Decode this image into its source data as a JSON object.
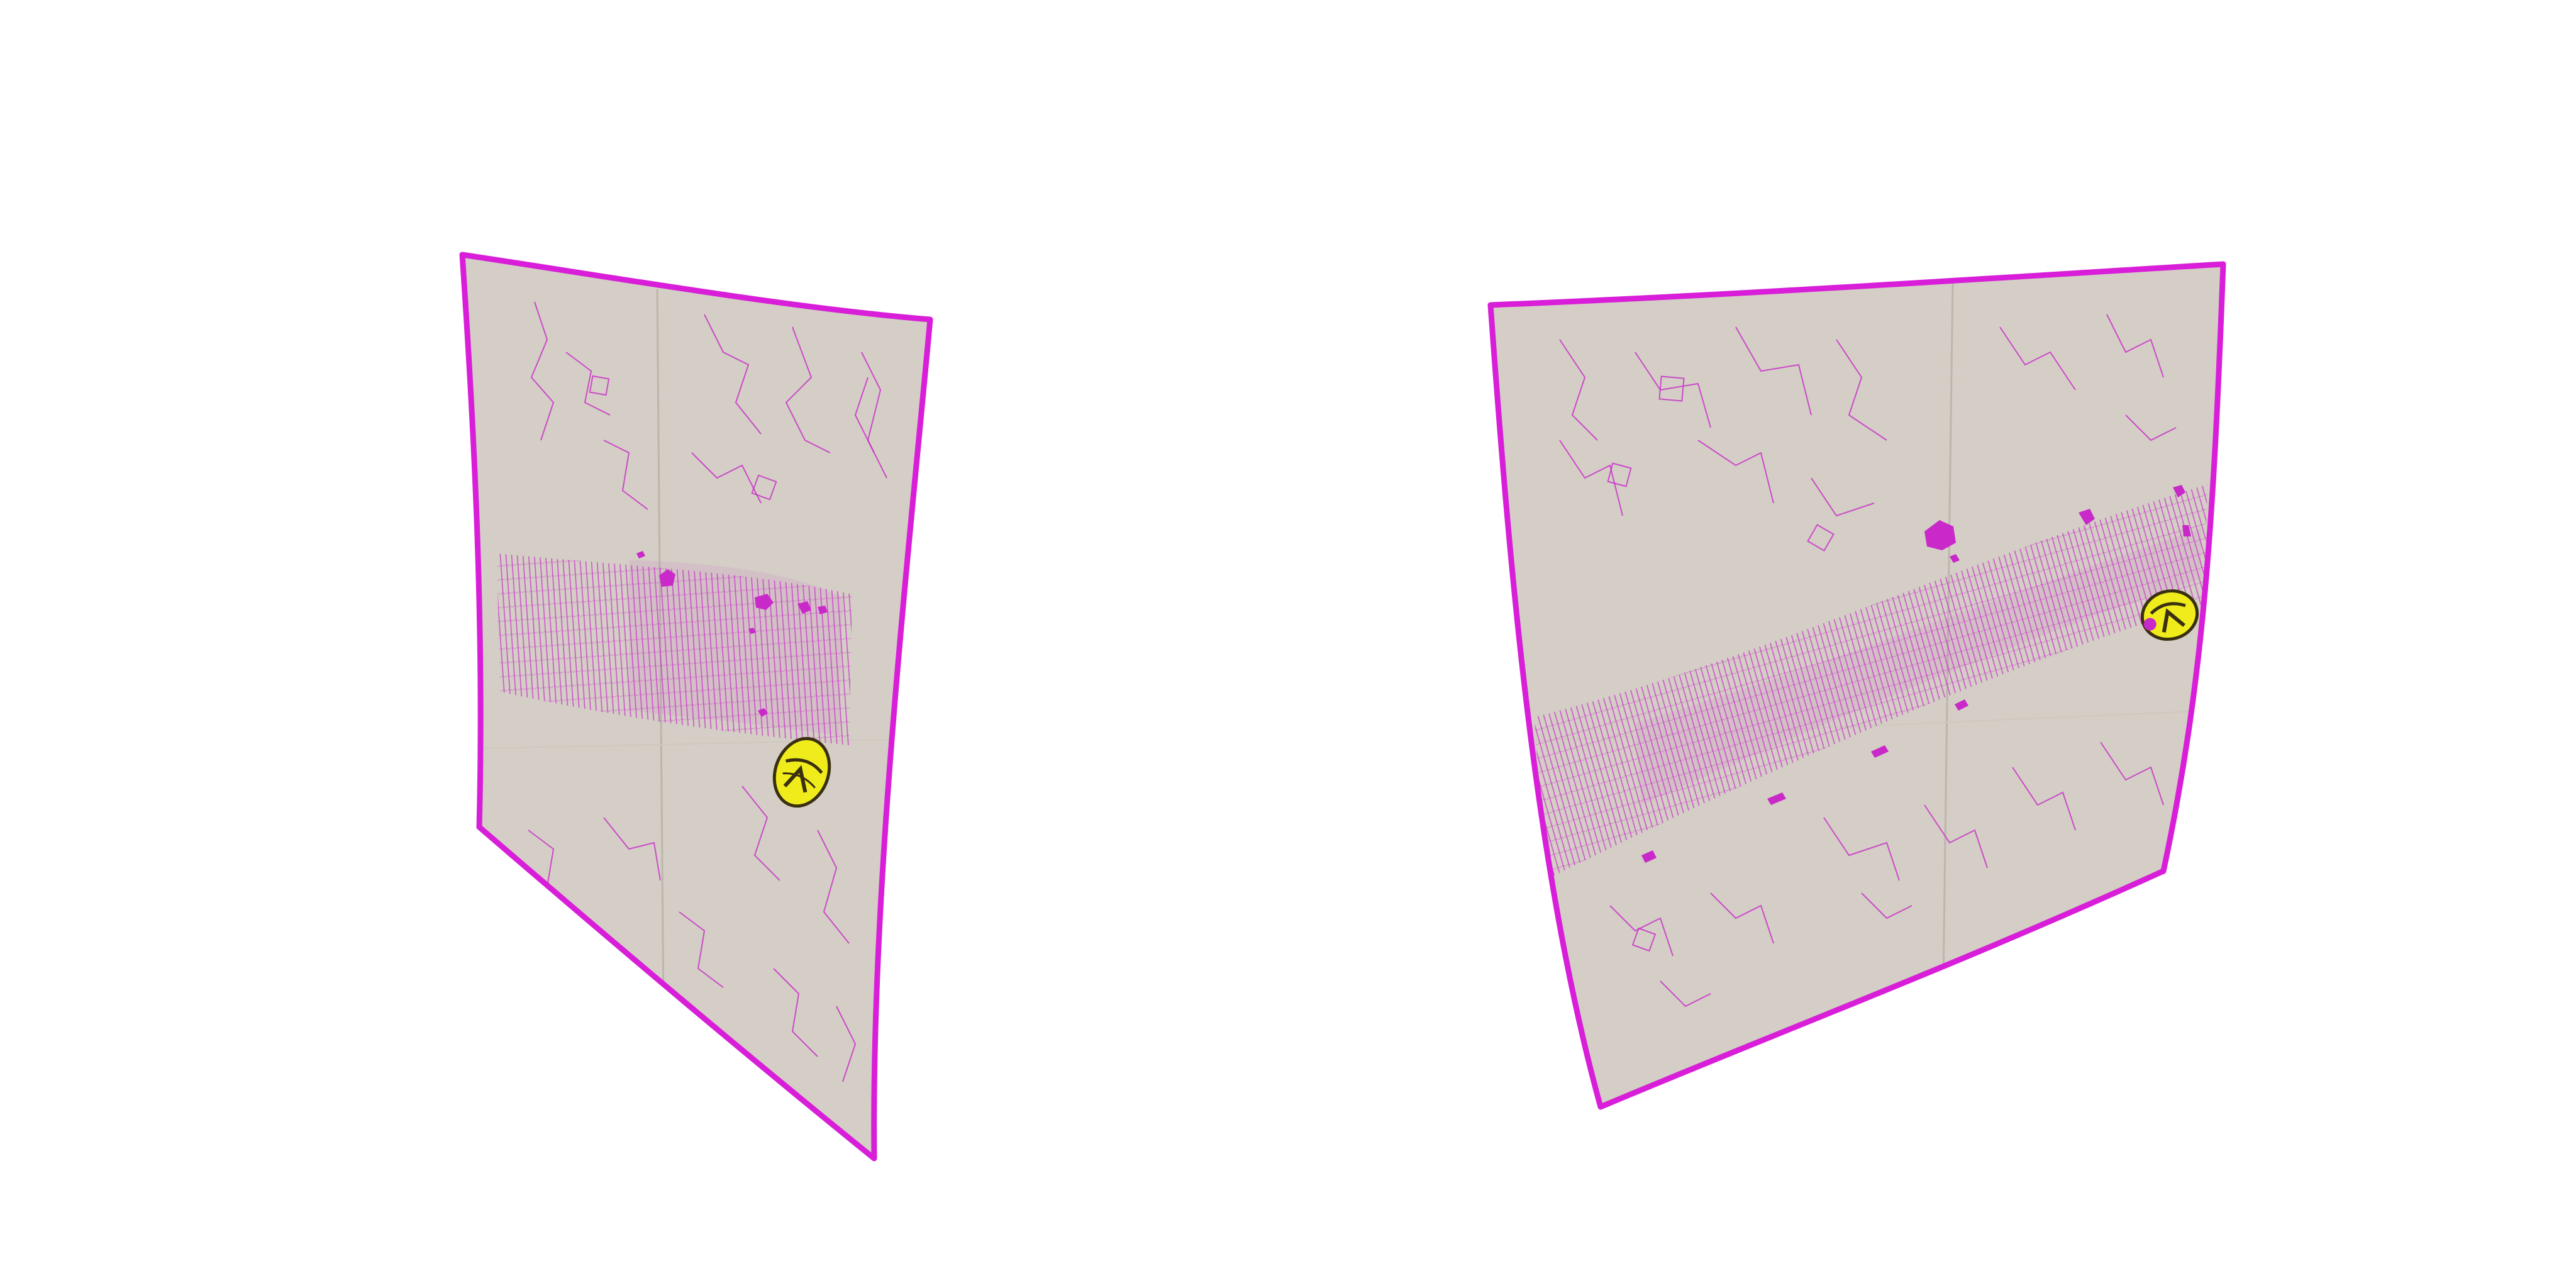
{
  "scene": {
    "background_color": "#ffffff",
    "object_count": 2,
    "sheet_fill_color": "#d4cec6",
    "sheet_outline_color": "#d81ed8",
    "pattern_color": "#c829c8",
    "marker_fill_color": "#f0ec1c",
    "marker_stroke_color": "#3a3010",
    "marker_icon": "eye-like-oval-marker"
  }
}
